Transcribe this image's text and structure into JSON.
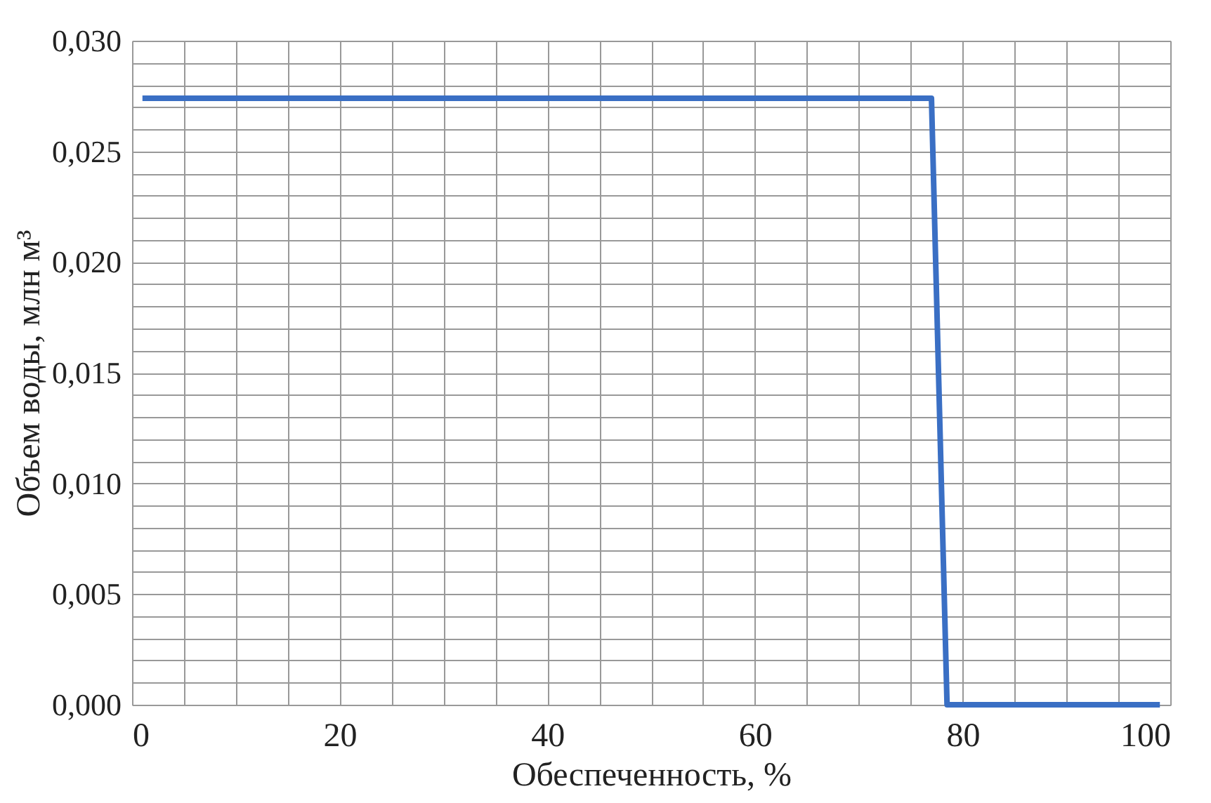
{
  "chart_data": {
    "type": "line",
    "xlabel": "Обеспеченность, %",
    "ylabel": "Объем  воды, млн м³",
    "series": [
      {
        "color": "#3a6fc4",
        "x": [
          1,
          65,
          77,
          78.5,
          99
        ],
        "values": [
          0.0274,
          0.0274,
          0.0274,
          0,
          0
        ]
      }
    ],
    "xlim": [
      0,
      100
    ],
    "ylim": [
      0,
      0.03
    ],
    "xticks": [
      0,
      {
        "value": 5,
        "label": null
      },
      {
        "value": 10,
        "label": null
      },
      {
        "value": 15,
        "label": null
      },
      20,
      {
        "value": 25,
        "label": null
      },
      {
        "value": 30,
        "label": null
      },
      {
        "value": 35,
        "label": null
      },
      40,
      {
        "value": 45,
        "label": null
      },
      {
        "value": 50,
        "label": null
      },
      {
        "value": 55,
        "label": null
      },
      60,
      {
        "value": 65,
        "label": null
      },
      {
        "value": 70,
        "label": null
      },
      {
        "value": 75,
        "label": null
      },
      80,
      {
        "value": 85,
        "label": null
      },
      {
        "value": 90,
        "label": null
      },
      {
        "value": 95,
        "label": null
      },
      100
    ],
    "yticks": [
      {
        "value": 0,
        "label": "0,000"
      },
      {
        "value": 0.001,
        "label": null
      },
      {
        "value": 0.002,
        "label": null
      },
      {
        "value": 0.003,
        "label": null
      },
      {
        "value": 0.004,
        "label": null
      },
      {
        "value": 0.005,
        "label": "0,005"
      },
      {
        "value": 0.006,
        "label": null
      },
      {
        "value": 0.007,
        "label": null
      },
      {
        "value": 0.008,
        "label": null
      },
      {
        "value": 0.009,
        "label": null
      },
      {
        "value": 0.01,
        "label": "0,010"
      },
      {
        "value": 0.011,
        "label": null
      },
      {
        "value": 0.012,
        "label": null
      },
      {
        "value": 0.013,
        "label": null
      },
      {
        "value": 0.014,
        "label": null
      },
      {
        "value": 0.015,
        "label": "0,015"
      },
      {
        "value": 0.016,
        "label": null
      },
      {
        "value": 0.017,
        "label": null
      },
      {
        "value": 0.018,
        "label": null
      },
      {
        "value": 0.019,
        "label": null
      },
      {
        "value": 0.02,
        "label": "0,020"
      },
      {
        "value": 0.021,
        "label": null
      },
      {
        "value": 0.022,
        "label": null
      },
      {
        "value": 0.023,
        "label": null
      },
      {
        "value": 0.024,
        "label": null
      },
      {
        "value": 0.025,
        "label": "0,025"
      },
      {
        "value": 0.026,
        "label": null
      },
      {
        "value": 0.027,
        "label": null
      },
      {
        "value": 0.028,
        "label": null
      },
      {
        "value": 0.029,
        "label": null
      },
      {
        "value": 0.03,
        "label": "0,030"
      }
    ],
    "grid": true,
    "marker": "none",
    "line_style": "solid"
  }
}
